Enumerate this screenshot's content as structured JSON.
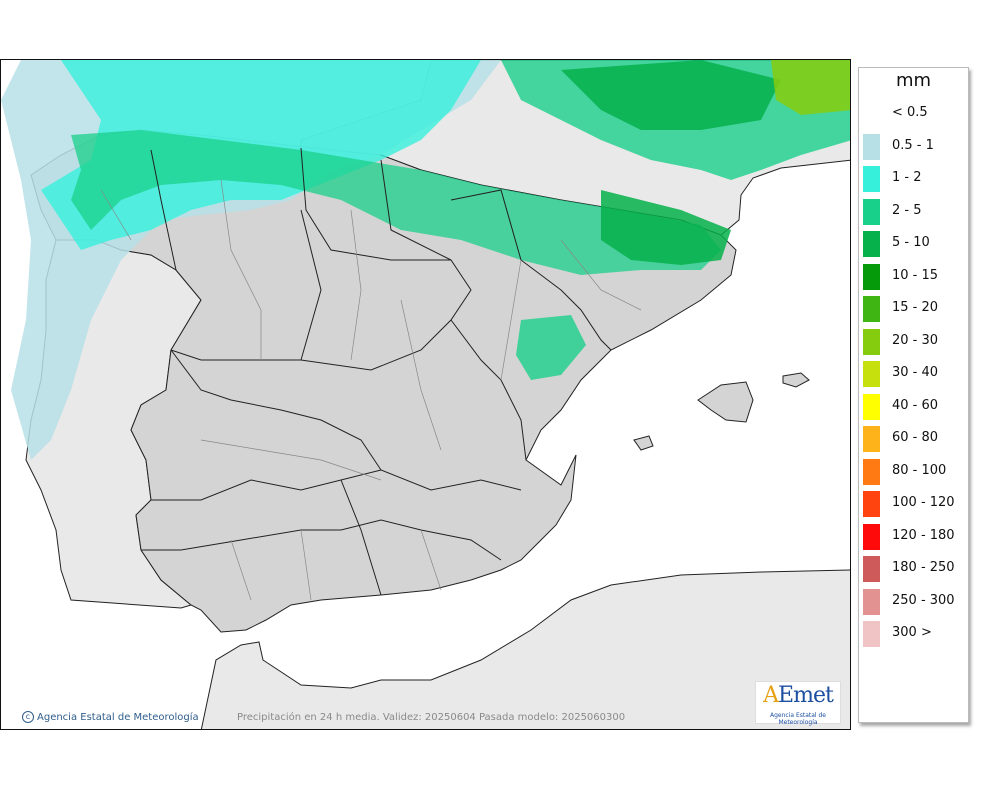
{
  "legend": {
    "unit": "mm",
    "items": [
      {
        "label": "< 0.5",
        "color": "#ffffff"
      },
      {
        "label": "0.5 - 1",
        "color": "#b6e0e6"
      },
      {
        "label": "1 - 2",
        "color": "#37f0dc"
      },
      {
        "label": "2 - 5",
        "color": "#19d08a"
      },
      {
        "label": "5 - 10",
        "color": "#06b04b"
      },
      {
        "label": "10 - 15",
        "color": "#049a0a"
      },
      {
        "label": "15 - 20",
        "color": "#3fb514"
      },
      {
        "label": "20 - 30",
        "color": "#86cc0e"
      },
      {
        "label": "30 - 40",
        "color": "#c6e00e"
      },
      {
        "label": "40 - 60",
        "color": "#ffff00"
      },
      {
        "label": "60 - 80",
        "color": "#ffb31a"
      },
      {
        "label": "80 - 100",
        "color": "#ff7a12"
      },
      {
        "label": "100 - 120",
        "color": "#ff4410"
      },
      {
        "label": "120 - 180",
        "color": "#ff0a0a"
      },
      {
        "label": "180 - 250",
        "color": "#cf5a5a"
      },
      {
        "label": "250 - 300",
        "color": "#e39292"
      },
      {
        "label": "300 >",
        "color": "#f0c4c4"
      }
    ]
  },
  "credit": "Agencia Estatal de Meteorología",
  "caption": "Precipitación en 24 h media. Validez: 20250604 Pasada modelo: 2025060300",
  "logo": {
    "text_a": "A",
    "text_rest": "Emet",
    "subtitle": "Agencia Estatal de Meteorología"
  },
  "colors": {
    "land": "#d4d4d4",
    "land_other": "#e9e9e9",
    "sea": "#ffffff",
    "border": "#222222"
  }
}
